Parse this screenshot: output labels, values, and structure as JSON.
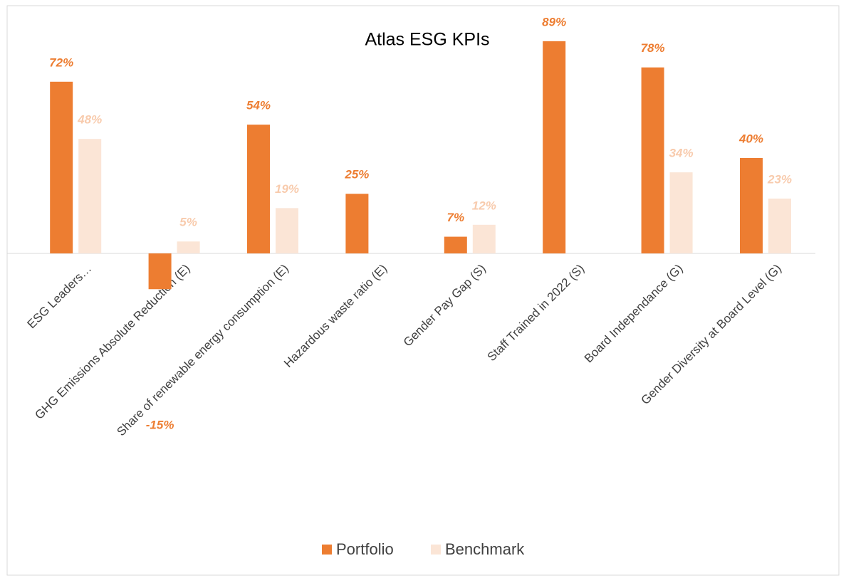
{
  "chart_data": {
    "type": "bar",
    "title": "Atlas ESG KPIs",
    "categories": [
      "ESG Leaders…",
      "GHG Emissions Absolute Reduction (E)",
      "Share of renewable energy consumption (E)",
      "Hazardous waste ratio (E)",
      "Gender Pay Gap (S)",
      "Staff Trained in 2022 (S)",
      "Board Independance (G)",
      "Gender Diversity at Board Level (G)"
    ],
    "series": [
      {
        "name": "Portfolio",
        "color": "#ED7D31",
        "label_color": "#ED7D31",
        "values": [
          72,
          -15,
          54,
          25,
          7,
          89,
          78,
          40
        ],
        "value_labels": [
          "72%",
          "-15%",
          "54%",
          "25%",
          "7%",
          "89%",
          "78%",
          "40%"
        ]
      },
      {
        "name": "Benchmark",
        "color": "#FBE5D6",
        "label_color": "#F8CBAD",
        "values": [
          48,
          5,
          19,
          null,
          12,
          null,
          34,
          23
        ],
        "value_labels": [
          "48%",
          "5%",
          "19%",
          null,
          "12%",
          null,
          "34%",
          "23%"
        ]
      }
    ],
    "legend": "bottom"
  }
}
